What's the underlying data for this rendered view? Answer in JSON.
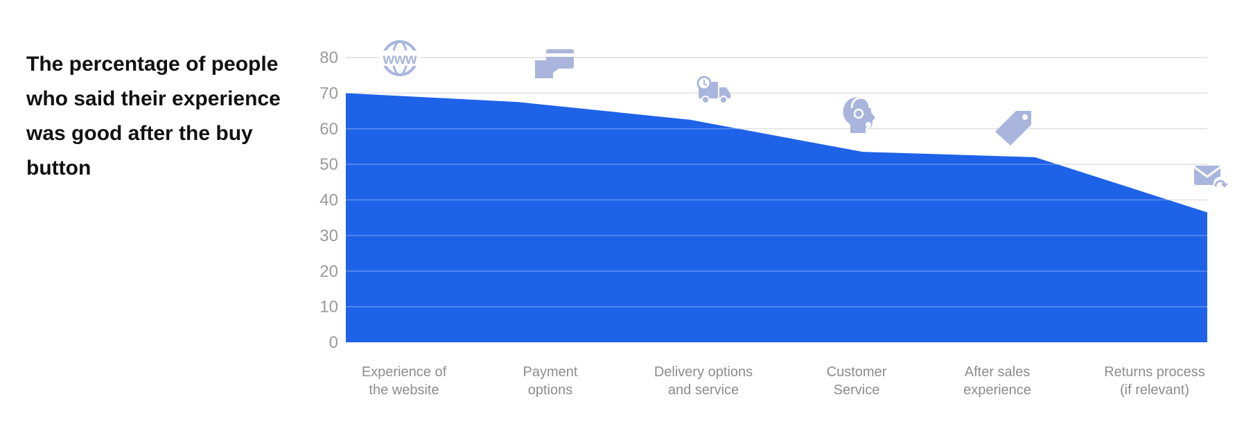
{
  "chart_data": {
    "type": "area",
    "title": "The percentage of people who said their experience was good after the buy button",
    "categories": [
      [
        "Experience of",
        "the website"
      ],
      [
        "Payment",
        "options"
      ],
      [
        "Delivery options",
        "and service"
      ],
      [
        "Customer",
        "Service"
      ],
      [
        "After sales",
        "experience"
      ],
      [
        "Returns process",
        "(if relevant)"
      ]
    ],
    "x_icons": [
      "www-globe-icon",
      "payment-card-icon",
      "delivery-truck-icon",
      "customer-service-headset-icon",
      "price-tag-icon",
      "return-mail-icon"
    ],
    "series": [
      {
        "values": [
          70,
          67.5,
          62.5,
          53.5,
          52,
          36.5
        ]
      }
    ],
    "ylim": [
      0,
      80
    ],
    "yticks": [
      0,
      10,
      20,
      30,
      40,
      50,
      60,
      70,
      80
    ],
    "grid": true,
    "colors": {
      "area": "#1e62e8",
      "icon": "#a9b5dd",
      "grid": "#d4d4d4",
      "tick": "#9a9a9a",
      "category": "#8c8c8c"
    }
  }
}
